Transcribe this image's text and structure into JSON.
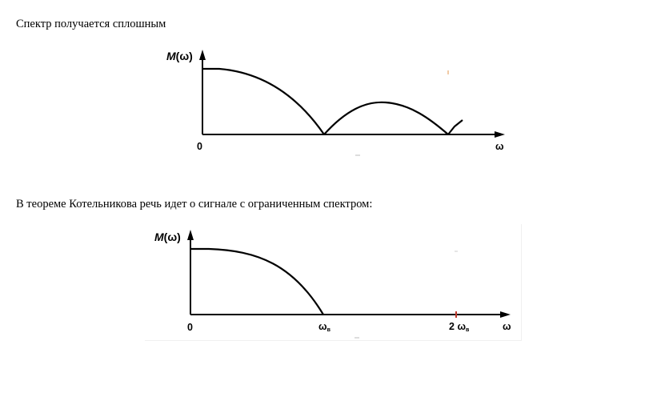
{
  "text": {
    "paragraph_1": "Спектр получается сплошным",
    "paragraph_2": "В теореме Котельникова речь идет о сигнале с ограниченным спектром:"
  },
  "figure_1": {
    "y_label_symbol": "M",
    "y_label_arg": "(ω)",
    "origin_label": "0",
    "x_label": "ω",
    "curve": "|sin(ω)/ω|-like continuous spectrum with lobes"
  },
  "figure_2": {
    "y_label_symbol": "M",
    "y_label_arg": "(ω)",
    "origin_label": "0",
    "tick_1_main": "ω",
    "tick_1_sub": "в",
    "tick_2_prefix": "2 ",
    "tick_2_main": "ω",
    "tick_2_sub": "в",
    "x_label": "ω",
    "tick_marker_color": "#c0392b"
  }
}
